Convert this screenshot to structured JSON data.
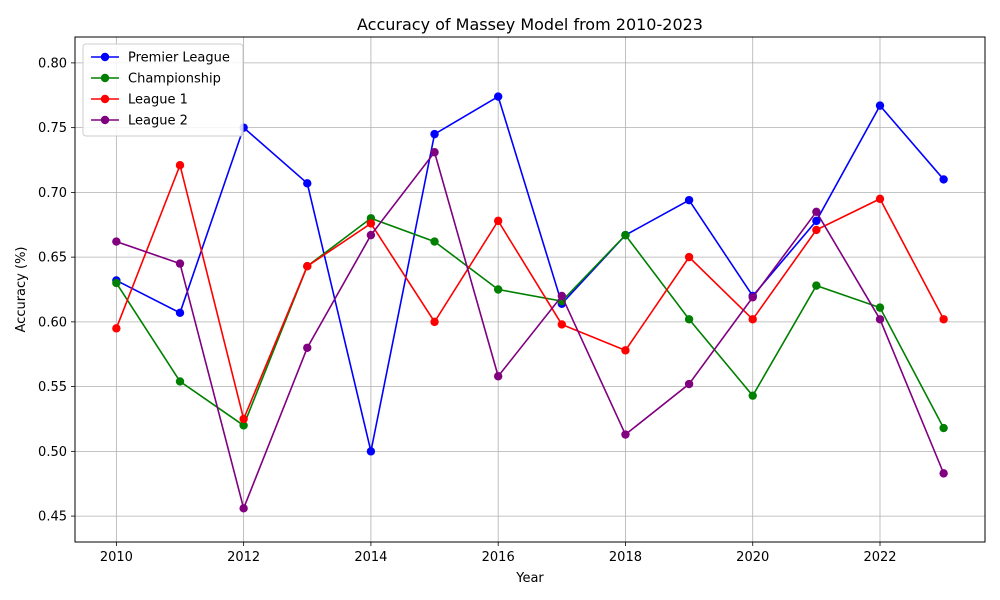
{
  "chart_data": {
    "type": "line",
    "title": "Accuracy of Massey Model from 2010-2023",
    "xlabel": "Year",
    "ylabel": "Accuracy (%)",
    "x": [
      2010,
      2011,
      2012,
      2013,
      2014,
      2015,
      2016,
      2017,
      2018,
      2019,
      2020,
      2021,
      2022,
      2023
    ],
    "xlim": [
      2009.35,
      2023.65
    ],
    "ylim": [
      0.43,
      0.82
    ],
    "x_ticks": [
      2010,
      2012,
      2014,
      2016,
      2018,
      2020,
      2022
    ],
    "y_ticks": [
      0.45,
      0.5,
      0.55,
      0.6,
      0.65,
      0.7,
      0.75,
      0.8
    ],
    "grid": true,
    "legend_position": "top-left",
    "series": [
      {
        "name": "Premier League",
        "color": "#0000ff",
        "values": [
          0.632,
          0.607,
          0.75,
          0.707,
          0.5,
          0.745,
          0.774,
          0.614,
          0.667,
          0.694,
          0.62,
          0.678,
          0.767,
          0.71
        ]
      },
      {
        "name": "Championship",
        "color": "#008000",
        "values": [
          0.63,
          0.554,
          0.52,
          0.643,
          0.68,
          0.662,
          0.625,
          0.616,
          0.667,
          0.602,
          0.543,
          0.628,
          0.611,
          0.518
        ]
      },
      {
        "name": "League 1",
        "color": "#ff0000",
        "values": [
          0.595,
          0.721,
          0.525,
          0.643,
          0.676,
          0.6,
          0.678,
          0.598,
          0.578,
          0.65,
          0.602,
          0.671,
          0.695,
          0.602
        ]
      },
      {
        "name": "League 2",
        "color": "#800080",
        "values": [
          0.662,
          0.645,
          0.456,
          0.58,
          0.667,
          0.731,
          0.558,
          0.62,
          0.513,
          0.552,
          0.619,
          0.685,
          0.602,
          0.483
        ]
      }
    ]
  }
}
